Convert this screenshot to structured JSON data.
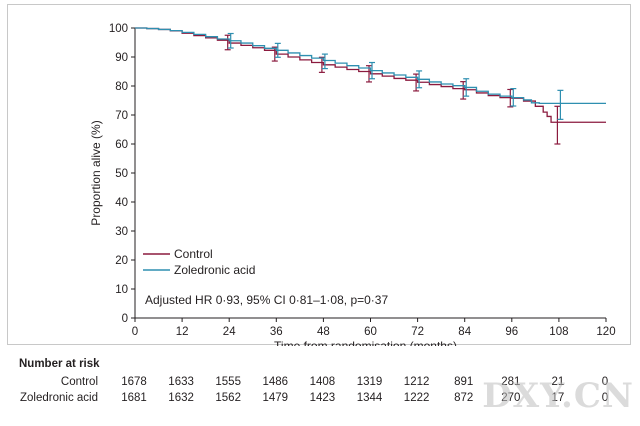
{
  "chart_data": {
    "type": "line",
    "subtype": "kaplan-meier",
    "xlabel": "Time from randomisation (months)",
    "ylabel": "Proportion alive (%)",
    "xlim": [
      0,
      120
    ],
    "ylim": [
      0,
      100
    ],
    "xticks": [
      0,
      12,
      24,
      36,
      48,
      60,
      72,
      84,
      96,
      108,
      120
    ],
    "yticks": [
      0,
      10,
      20,
      30,
      40,
      50,
      60,
      70,
      80,
      90,
      100
    ],
    "grid": false,
    "legend_position": "bottom-left",
    "annotation": "Adjusted HR 0·93, 95% CI 0·81–1·08, p=0·37",
    "series": [
      {
        "name": "Control",
        "color": "#8b1a3e",
        "points": [
          [
            0,
            100
          ],
          [
            3,
            99.8
          ],
          [
            6,
            99.5
          ],
          [
            9,
            99
          ],
          [
            12,
            98.2
          ],
          [
            15,
            97.4
          ],
          [
            18,
            96.6
          ],
          [
            21,
            95.8
          ],
          [
            24,
            94.8
          ],
          [
            27,
            94
          ],
          [
            30,
            93.2
          ],
          [
            33,
            92.3
          ],
          [
            36,
            91
          ],
          [
            39,
            90
          ],
          [
            42,
            89
          ],
          [
            45,
            88.1
          ],
          [
            48,
            87.3
          ],
          [
            51,
            86.5
          ],
          [
            54,
            85.7
          ],
          [
            57,
            85
          ],
          [
            60,
            84.2
          ],
          [
            63,
            83.4
          ],
          [
            66,
            82.6
          ],
          [
            69,
            82
          ],
          [
            72,
            81.3
          ],
          [
            75,
            80.5
          ],
          [
            78,
            79.8
          ],
          [
            81,
            79.1
          ],
          [
            84,
            78.7
          ],
          [
            87,
            77.6
          ],
          [
            90,
            76.7
          ],
          [
            93,
            76
          ],
          [
            96,
            75.8
          ],
          [
            99,
            74.8
          ],
          [
            102,
            73
          ],
          [
            104,
            71
          ],
          [
            105,
            69.5
          ],
          [
            106,
            67.5
          ],
          [
            120,
            67.5
          ]
        ],
        "error_bars": [
          [
            24,
            95,
            2.5
          ],
          [
            36,
            91,
            2.4
          ],
          [
            48,
            87.3,
            2.6
          ],
          [
            60,
            84.2,
            2.8
          ],
          [
            72,
            81.2,
            2.9
          ],
          [
            84,
            78.5,
            3.0
          ],
          [
            96,
            75.8,
            3.0
          ],
          [
            108,
            66.5,
            6.5
          ]
        ]
      },
      {
        "name": "Zoledronic acid",
        "color": "#2e8fb0",
        "points": [
          [
            0,
            100
          ],
          [
            3,
            99.8
          ],
          [
            6,
            99.5
          ],
          [
            9,
            99.1
          ],
          [
            12,
            98.5
          ],
          [
            15,
            97.8
          ],
          [
            18,
            97
          ],
          [
            21,
            96.2
          ],
          [
            24,
            95.6
          ],
          [
            27,
            94.8
          ],
          [
            30,
            93.9
          ],
          [
            33,
            93
          ],
          [
            36,
            92.3
          ],
          [
            39,
            91.4
          ],
          [
            42,
            90.5
          ],
          [
            45,
            89.6
          ],
          [
            48,
            88.8
          ],
          [
            51,
            87.9
          ],
          [
            54,
            87
          ],
          [
            57,
            86.2
          ],
          [
            60,
            85.3
          ],
          [
            63,
            84.5
          ],
          [
            66,
            83.8
          ],
          [
            69,
            83
          ],
          [
            72,
            82.3
          ],
          [
            75,
            81.4
          ],
          [
            78,
            80.7
          ],
          [
            81,
            80.1
          ],
          [
            84,
            79.5
          ],
          [
            87,
            78.2
          ],
          [
            90,
            77.2
          ],
          [
            93,
            76.5
          ],
          [
            96,
            76
          ],
          [
            99,
            75.2
          ],
          [
            101,
            74.2
          ],
          [
            103,
            74
          ],
          [
            120,
            74
          ]
        ],
        "error_bars": [
          [
            24,
            95.6,
            2.5
          ],
          [
            36,
            92.3,
            2.4
          ],
          [
            48,
            88.5,
            2.5
          ],
          [
            60,
            85.3,
            2.8
          ],
          [
            72,
            82.3,
            2.9
          ],
          [
            84,
            79.5,
            3.0
          ],
          [
            96,
            76.1,
            3.0
          ],
          [
            108,
            73.5,
            5.0
          ]
        ]
      }
    ]
  },
  "risk_table": {
    "title": "Number at risk",
    "rows": [
      {
        "label": "Control",
        "values": [
          "1678",
          "1633",
          "1555",
          "1486",
          "1408",
          "1319",
          "1212",
          "891",
          "281",
          "21",
          "0"
        ]
      },
      {
        "label": "Zoledronic acid",
        "values": [
          "1681",
          "1632",
          "1562",
          "1479",
          "1423",
          "1344",
          "1222",
          "872",
          "270",
          "17",
          "0"
        ]
      }
    ]
  },
  "watermark": "DXY.CN"
}
